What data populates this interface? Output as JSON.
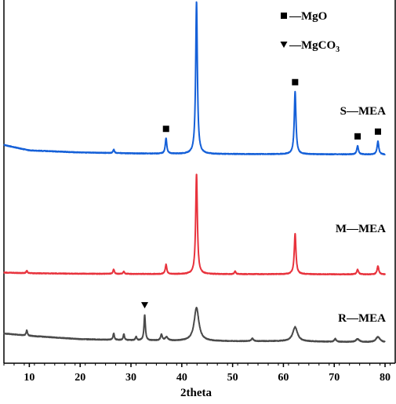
{
  "chart_data": {
    "type": "line",
    "xlabel": "2theta",
    "xlim": [
      5,
      82
    ],
    "x_ticks": [
      10,
      20,
      30,
      40,
      50,
      60,
      70,
      80
    ],
    "y_ticks": [],
    "grid": false,
    "legend": {
      "position": "top-right",
      "entries": [
        {
          "symbol": "square",
          "text": "—MgO"
        },
        {
          "symbol": "triangle-down",
          "text": "—MgCO",
          "subscript": "3"
        }
      ]
    },
    "series": [
      {
        "name": "S—MEA",
        "color": "#1560d8",
        "baseline": 0.92,
        "background": [
          [
            5,
            1.6
          ],
          [
            10,
            0.7
          ],
          [
            20,
            0.35
          ],
          [
            30,
            0.2
          ],
          [
            40,
            0.1
          ],
          [
            50,
            0.08
          ],
          [
            60,
            0.06
          ],
          [
            70,
            0.04
          ],
          [
            80,
            0.0
          ]
        ],
        "peaks": [
          {
            "x": 26.6,
            "h": 0.6,
            "w": 0.15
          },
          {
            "x": 36.9,
            "h": 2.6,
            "w": 0.18,
            "marker": "square"
          },
          {
            "x": 42.9,
            "h": 25.5,
            "w": 0.2,
            "marker": "square"
          },
          {
            "x": 62.3,
            "h": 10.5,
            "w": 0.2,
            "marker": "square"
          },
          {
            "x": 74.6,
            "h": 1.4,
            "w": 0.2,
            "marker": "square"
          },
          {
            "x": 78.6,
            "h": 2.2,
            "w": 0.2,
            "marker": "square"
          }
        ]
      },
      {
        "name": "M—MEA",
        "color": "#e8333d",
        "baseline": 0.55,
        "background": [
          [
            5,
            0.3
          ],
          [
            10,
            0.2
          ],
          [
            20,
            0.12
          ],
          [
            30,
            0.08
          ],
          [
            40,
            0.05
          ],
          [
            60,
            0.04
          ],
          [
            80,
            0.0
          ]
        ],
        "peaks": [
          {
            "x": 9.5,
            "h": 0.4,
            "w": 0.15
          },
          {
            "x": 26.6,
            "h": 0.8,
            "w": 0.15
          },
          {
            "x": 28.6,
            "h": 0.4,
            "w": 0.15
          },
          {
            "x": 36.9,
            "h": 1.6,
            "w": 0.18
          },
          {
            "x": 42.9,
            "h": 16.8,
            "w": 0.2
          },
          {
            "x": 50.5,
            "h": 0.5,
            "w": 0.15
          },
          {
            "x": 62.3,
            "h": 6.8,
            "w": 0.2
          },
          {
            "x": 74.6,
            "h": 0.8,
            "w": 0.2
          },
          {
            "x": 78.6,
            "h": 1.4,
            "w": 0.2
          }
        ]
      },
      {
        "name": "R—MEA",
        "color": "#4a4a4a",
        "baseline": 0.2,
        "background": [
          [
            5,
            1.5
          ],
          [
            10,
            1.1
          ],
          [
            20,
            0.55
          ],
          [
            30,
            0.35
          ],
          [
            40,
            0.25
          ],
          [
            50,
            0.2
          ],
          [
            60,
            0.2
          ],
          [
            70,
            0.1
          ],
          [
            80,
            0.0
          ]
        ],
        "peaks": [
          {
            "x": 9.5,
            "h": 0.9,
            "w": 0.15
          },
          {
            "x": 26.6,
            "h": 1.1,
            "w": 0.15
          },
          {
            "x": 28.6,
            "h": 1.0,
            "w": 0.15
          },
          {
            "x": 31.0,
            "h": 0.6,
            "w": 0.15
          },
          {
            "x": 32.7,
            "h": 4.3,
            "w": 0.16,
            "marker": "triangle-down"
          },
          {
            "x": 36.0,
            "h": 1.0,
            "w": 0.2
          },
          {
            "x": 37.0,
            "h": 0.6,
            "w": 0.3
          },
          {
            "x": 42.9,
            "h": 5.6,
            "w": 0.55
          },
          {
            "x": 53.9,
            "h": 0.5,
            "w": 0.2
          },
          {
            "x": 62.3,
            "h": 2.4,
            "w": 0.55
          },
          {
            "x": 70.2,
            "h": 0.5,
            "w": 0.2
          },
          {
            "x": 74.6,
            "h": 0.5,
            "w": 0.4
          },
          {
            "x": 78.6,
            "h": 0.9,
            "w": 0.5
          }
        ]
      }
    ]
  }
}
